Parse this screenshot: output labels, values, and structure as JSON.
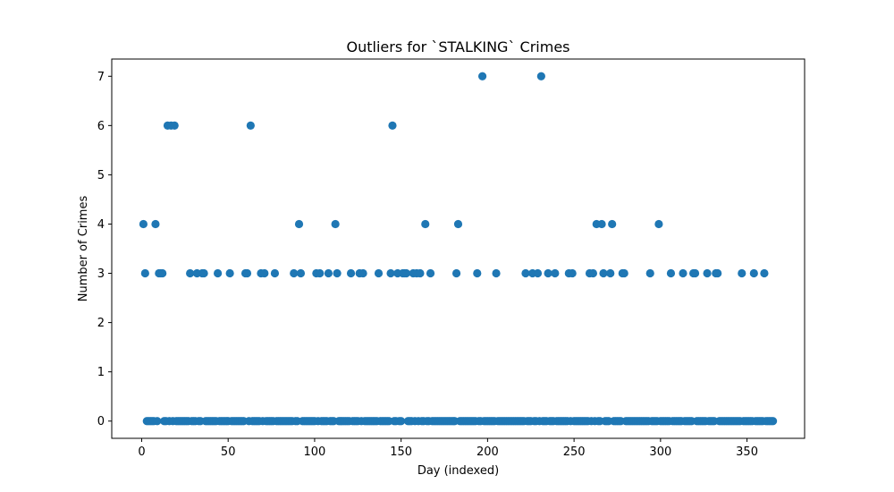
{
  "chart_data": {
    "type": "scatter",
    "title": "Outliers for `STALKING` Crimes",
    "xlabel": "Day (indexed)",
    "ylabel": "Number of Crimes",
    "xlim": [
      -17.3,
      383.3
    ],
    "ylim": [
      -0.35,
      7.35
    ],
    "xticks": [
      0,
      50,
      100,
      150,
      200,
      250,
      300,
      350
    ],
    "yticks": [
      0,
      1,
      2,
      3,
      4,
      5,
      6,
      7
    ],
    "grid": false,
    "marker_color": "#1f77b4",
    "nonzero_points": {
      "x": [
        1,
        8,
        91,
        112,
        164,
        183,
        263,
        266,
        272,
        299,
        15,
        17,
        19,
        63,
        145,
        197,
        231,
        2,
        10,
        11,
        12,
        28,
        32,
        35,
        36,
        44,
        51,
        60,
        61,
        69,
        71,
        77,
        88,
        92,
        101,
        103,
        108,
        113,
        121,
        126,
        128,
        137,
        144,
        148,
        151,
        152,
        153,
        157,
        159,
        161,
        167,
        182,
        194,
        205,
        222,
        226,
        229,
        235,
        239,
        247,
        249,
        259,
        261,
        267,
        271,
        278,
        279,
        294,
        306,
        313,
        319,
        320,
        327,
        332,
        333,
        347,
        354,
        360
      ],
      "y": [
        4,
        4,
        4,
        4,
        4,
        4,
        4,
        4,
        4,
        4,
        6,
        6,
        6,
        6,
        6,
        7,
        7,
        3,
        3,
        3,
        3,
        3,
        3,
        3,
        3,
        3,
        3,
        3,
        3,
        3,
        3,
        3,
        3,
        3,
        3,
        3,
        3,
        3,
        3,
        3,
        3,
        3,
        3,
        3,
        3,
        3,
        3,
        3,
        3,
        3,
        3,
        3,
        3,
        3,
        3,
        3,
        3,
        3,
        3,
        3,
        3,
        3,
        3,
        3,
        3,
        3,
        3,
        3,
        3,
        3,
        3,
        3,
        3,
        3,
        3,
        3,
        3,
        3
      ]
    },
    "zero_points": {
      "x_range": [
        3,
        365
      ],
      "y": 0
    }
  }
}
